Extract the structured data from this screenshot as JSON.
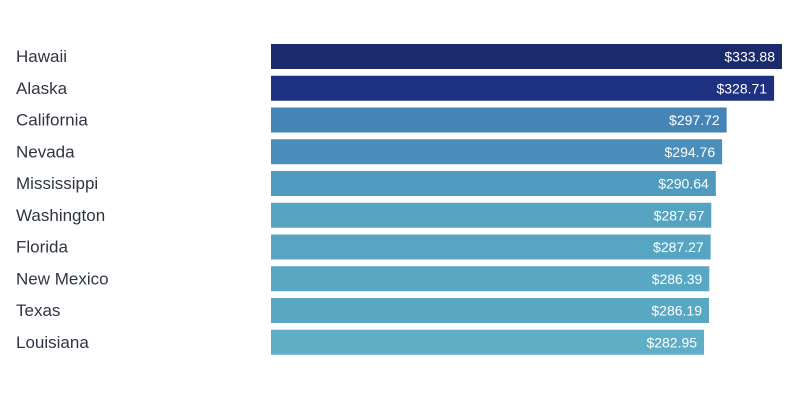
{
  "chart_data": {
    "type": "bar",
    "orientation": "horizontal",
    "categories": [
      "Hawaii",
      "Alaska",
      "California",
      "Nevada",
      "Mississippi",
      "Washington",
      "Florida",
      "New Mexico",
      "Texas",
      "Louisiana"
    ],
    "values": [
      333.88,
      328.71,
      297.72,
      294.76,
      290.64,
      287.67,
      287.27,
      286.39,
      286.19,
      282.95
    ],
    "value_labels": [
      "$333.88",
      "$328.71",
      "$297.72",
      "$294.76",
      "$290.64",
      "$287.67",
      "$287.27",
      "$286.39",
      "$286.19",
      "$282.95"
    ],
    "colors": [
      "#1b2a6b",
      "#1e3180",
      "#4584b6",
      "#4a8fbc",
      "#4f9abf",
      "#55a3c0",
      "#56a5c2",
      "#58a7c3",
      "#59a8c3",
      "#5eaec6"
    ],
    "title": "",
    "xlabel": "",
    "ylabel": "",
    "xlim": [
      0,
      333.88
    ],
    "grid": false,
    "legend": "none"
  }
}
